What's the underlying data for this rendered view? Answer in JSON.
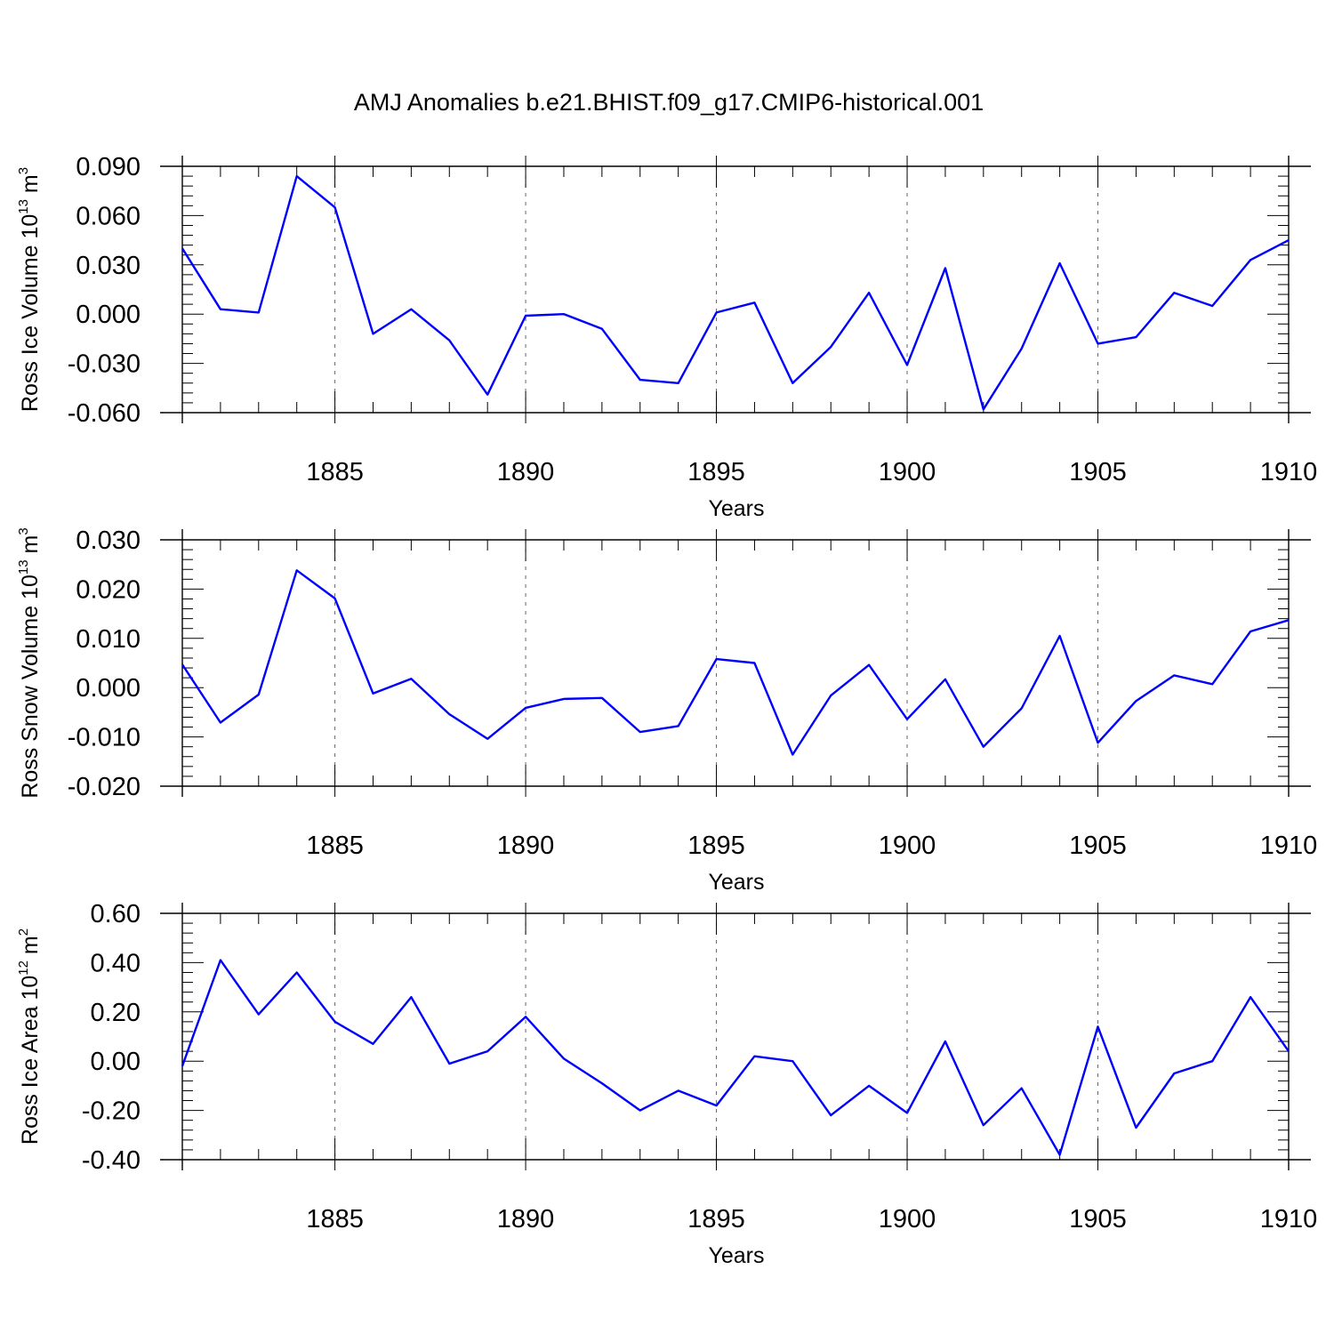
{
  "title": "AMJ Anomalies b.e21.BHIST.f09_g17.CMIP6-historical.001",
  "colors": {
    "line": "#0000ff",
    "axes": "#000000",
    "grid": "#666666"
  },
  "chart_data": [
    {
      "type": "line",
      "ylabel": "Ross Ice Volume 10",
      "ylabel_exp": "13",
      "ylabel_unit": " m",
      "ylabel_unit_exp": "3",
      "xlabel": "Years",
      "xlim": [
        1881,
        1910
      ],
      "ylim": [
        -0.06,
        0.09
      ],
      "yticks": [
        -0.06,
        -0.03,
        0.0,
        0.03,
        0.06,
        0.09
      ],
      "ytick_labels": [
        "-0.060",
        "-0.030",
        "0.000",
        "0.030",
        "0.060",
        "0.090"
      ],
      "xticks": [
        1885,
        1890,
        1895,
        1900,
        1905,
        1910
      ],
      "xtick_labels": [
        "1885",
        "1890",
        "1895",
        "1900",
        "1905",
        "1910"
      ],
      "grid": "vertical dashed at major x ticks",
      "x": [
        1881,
        1882,
        1883,
        1884,
        1885,
        1886,
        1887,
        1888,
        1889,
        1890,
        1891,
        1892,
        1893,
        1894,
        1895,
        1896,
        1897,
        1898,
        1899,
        1900,
        1901,
        1902,
        1903,
        1904,
        1905,
        1906,
        1907,
        1908,
        1909,
        1910
      ],
      "values": [
        0.04,
        0.003,
        0.001,
        0.084,
        0.065,
        -0.012,
        0.003,
        -0.016,
        -0.049,
        -0.001,
        0.0,
        -0.009,
        -0.04,
        -0.042,
        0.001,
        0.007,
        -0.042,
        -0.02,
        0.013,
        -0.031,
        0.028,
        -0.058,
        -0.021,
        0.031,
        -0.018,
        -0.014,
        0.013,
        0.005,
        0.033,
        0.045
      ]
    },
    {
      "type": "line",
      "ylabel": "Ross Snow Volume 10",
      "ylabel_exp": "13",
      "ylabel_unit": " m",
      "ylabel_unit_exp": "3",
      "xlabel": "Years",
      "xlim": [
        1881,
        1910
      ],
      "ylim": [
        -0.02,
        0.03
      ],
      "yticks": [
        -0.02,
        -0.01,
        0.0,
        0.01,
        0.02,
        0.03
      ],
      "ytick_labels": [
        "-0.020",
        "-0.010",
        "0.000",
        "0.010",
        "0.020",
        "0.030"
      ],
      "xticks": [
        1885,
        1890,
        1895,
        1900,
        1905,
        1910
      ],
      "xtick_labels": [
        "1885",
        "1890",
        "1895",
        "1900",
        "1905",
        "1910"
      ],
      "grid": "vertical dashed at major x ticks",
      "x": [
        1881,
        1882,
        1883,
        1884,
        1885,
        1886,
        1887,
        1888,
        1889,
        1890,
        1891,
        1892,
        1893,
        1894,
        1895,
        1896,
        1897,
        1898,
        1899,
        1900,
        1901,
        1902,
        1903,
        1904,
        1905,
        1906,
        1907,
        1908,
        1909,
        1910
      ],
      "values": [
        0.0047,
        -0.0071,
        -0.0014,
        0.0238,
        0.0181,
        -0.0012,
        0.0018,
        -0.0054,
        -0.0104,
        -0.0041,
        -0.0023,
        -0.0021,
        -0.009,
        -0.0078,
        0.0058,
        0.005,
        -0.0136,
        -0.0016,
        0.0046,
        -0.0064,
        0.0017,
        -0.012,
        -0.0042,
        0.0105,
        -0.0112,
        -0.0027,
        0.0025,
        0.0007,
        0.0114,
        0.0137
      ]
    },
    {
      "type": "line",
      "ylabel": "Ross Ice Area 10",
      "ylabel_exp": "12",
      "ylabel_unit": " m",
      "ylabel_unit_exp": "2",
      "xlabel": "Years",
      "xlim": [
        1881,
        1910
      ],
      "ylim": [
        -0.4,
        0.6
      ],
      "yticks": [
        -0.4,
        -0.2,
        0.0,
        0.2,
        0.4,
        0.6
      ],
      "ytick_labels": [
        "-0.40",
        "-0.20",
        "0.00",
        "0.20",
        "0.40",
        "0.60"
      ],
      "xticks": [
        1885,
        1890,
        1895,
        1900,
        1905,
        1910
      ],
      "xtick_labels": [
        "1885",
        "1890",
        "1895",
        "1900",
        "1905",
        "1910"
      ],
      "grid": "vertical dashed at major x ticks",
      "x": [
        1881,
        1882,
        1883,
        1884,
        1885,
        1886,
        1887,
        1888,
        1889,
        1890,
        1891,
        1892,
        1893,
        1894,
        1895,
        1896,
        1897,
        1898,
        1899,
        1900,
        1901,
        1902,
        1903,
        1904,
        1905,
        1906,
        1907,
        1908,
        1909,
        1910
      ],
      "values": [
        -0.02,
        0.41,
        0.19,
        0.36,
        0.16,
        0.07,
        0.26,
        -0.01,
        0.04,
        0.18,
        0.01,
        -0.09,
        -0.2,
        -0.12,
        -0.18,
        0.02,
        0.0,
        -0.22,
        -0.1,
        -0.21,
        0.08,
        -0.26,
        -0.11,
        -0.38,
        0.14,
        -0.27,
        -0.05,
        0.0,
        0.26,
        0.04
      ]
    }
  ]
}
